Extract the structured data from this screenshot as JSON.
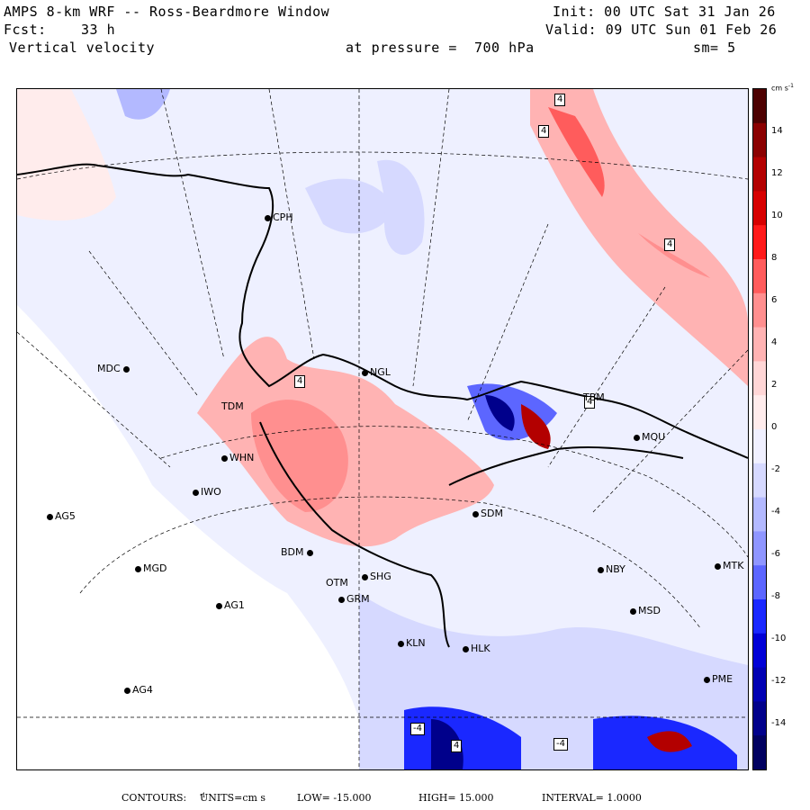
{
  "header": {
    "title": "AMPS 8-km WRF -- Ross-Beardmore Window",
    "forecast_label": "Fcst:",
    "forecast_hours": "33 h",
    "field": "Vertical velocity",
    "init": "Init: 00 UTC Sat 31 Jan 26",
    "valid": "Valid: 09 UTC Sun 01 Feb 26",
    "pressure": "at pressure =  700 hPa",
    "smoothing": "sm= 5"
  },
  "colorbar": {
    "units": "cm s",
    "units_exp": "-1",
    "ticks": [
      "14",
      "12",
      "10",
      "8",
      "6",
      "4",
      "2",
      "0",
      "-2",
      "-4",
      "-6",
      "-8",
      "-10",
      "-12",
      "-14"
    ],
    "colors": [
      "#4d0000",
      "#8b0000",
      "#b30000",
      "#d70000",
      "#ff1a1a",
      "#ff5c5c",
      "#ff8f8f",
      "#ffb3b3",
      "#ffd6d6",
      "#ffecec",
      "#f0f0ff",
      "#d6d9ff",
      "#b3b9ff",
      "#8f96ff",
      "#5c66ff",
      "#1a28ff",
      "#0000d7",
      "#0000b3",
      "#00008b",
      "#000060"
    ]
  },
  "stations": [
    {
      "code": "CPH"
    },
    {
      "code": "MDC"
    },
    {
      "code": "NGL"
    },
    {
      "code": "TDM"
    },
    {
      "code": "WHN"
    },
    {
      "code": "IWO"
    },
    {
      "code": "AG5"
    },
    {
      "code": "SDM"
    },
    {
      "code": "MGD"
    },
    {
      "code": "BDM"
    },
    {
      "code": "SHG"
    },
    {
      "code": "OTM"
    },
    {
      "code": "GRM"
    },
    {
      "code": "AG1"
    },
    {
      "code": "NBY"
    },
    {
      "code": "MTK"
    },
    {
      "code": "MSD"
    },
    {
      "code": "KLN"
    },
    {
      "code": "HLK"
    },
    {
      "code": "AG4"
    },
    {
      "code": "PME"
    },
    {
      "code": "TBM"
    },
    {
      "code": "MQU"
    }
  ],
  "contour_labels": [
    "4",
    "4",
    "4",
    "4",
    "4",
    "-4",
    "4",
    "-4"
  ],
  "footer": {
    "contours": "CONTOURS:",
    "units": "UNITS=cm s",
    "units_exp": "-1",
    "low": "LOW= -15.000",
    "high": "HIGH=  15.000",
    "interval": "INTERVAL=   1.0000"
  }
}
